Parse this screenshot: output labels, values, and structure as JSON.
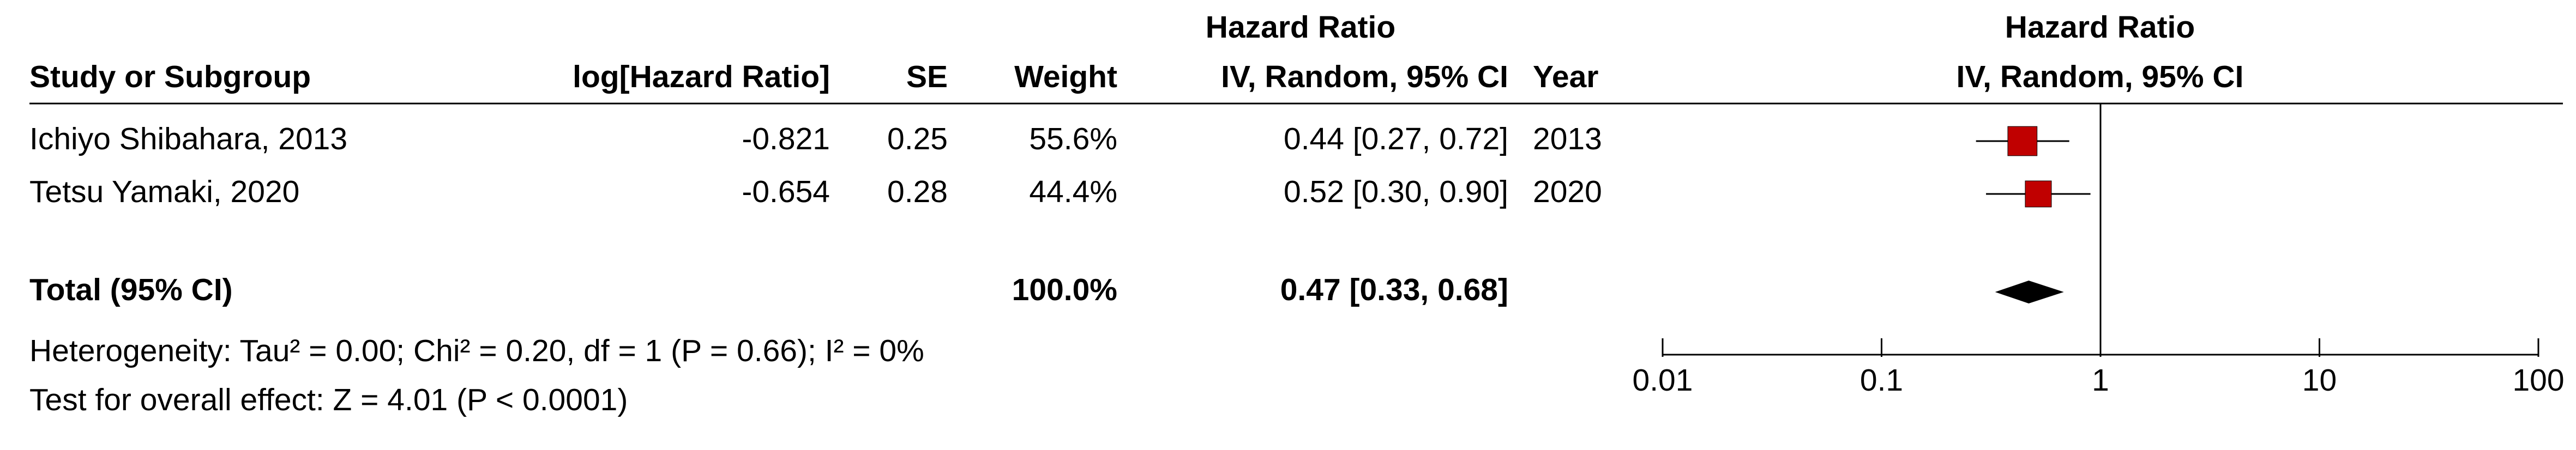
{
  "chart_data": {
    "type": "forest",
    "effect_header": "Hazard Ratio",
    "plot_title": "Hazard Ratio",
    "plot_subtitle": "IV, Random, 95% CI",
    "columns": [
      "Study or Subgroup",
      "log[Hazard Ratio]",
      "SE",
      "Weight",
      "IV, Random, 95% CI",
      "Year"
    ],
    "studies": [
      {
        "name": "Ichiyo Shibahara, 2013",
        "log_hr": -0.821,
        "se": 0.25,
        "weight": 55.6,
        "weight_label": "55.6%",
        "hr": 0.44,
        "ci_low": 0.27,
        "ci_high": 0.72,
        "ci_label": "0.44 [0.27, 0.72]",
        "year": 2013
      },
      {
        "name": "Tetsu Yamaki, 2020",
        "log_hr": -0.654,
        "se": 0.28,
        "weight": 44.4,
        "weight_label": "44.4%",
        "hr": 0.52,
        "ci_low": 0.3,
        "ci_high": 0.9,
        "ci_label": "0.52 [0.30, 0.90]",
        "year": 2020
      }
    ],
    "total": {
      "name": "Total (95% CI)",
      "weight": 100.0,
      "weight_label": "100.0%",
      "hr": 0.47,
      "ci_low": 0.33,
      "ci_high": 0.68,
      "ci_label": "0.47 [0.33, 0.68]"
    },
    "heterogeneity": "Heterogeneity: Tau² = 0.00; Chi² = 0.20, df = 1 (P = 0.66); I² = 0%",
    "overall_effect": "Test for overall effect: Z = 4.01 (P < 0.0001)",
    "xlim": [
      0.01,
      100
    ],
    "xticks": [
      0.01,
      0.1,
      1,
      10,
      100
    ],
    "log_x": true,
    "marker_color": "#c00000",
    "diamond_color": "#000000"
  }
}
